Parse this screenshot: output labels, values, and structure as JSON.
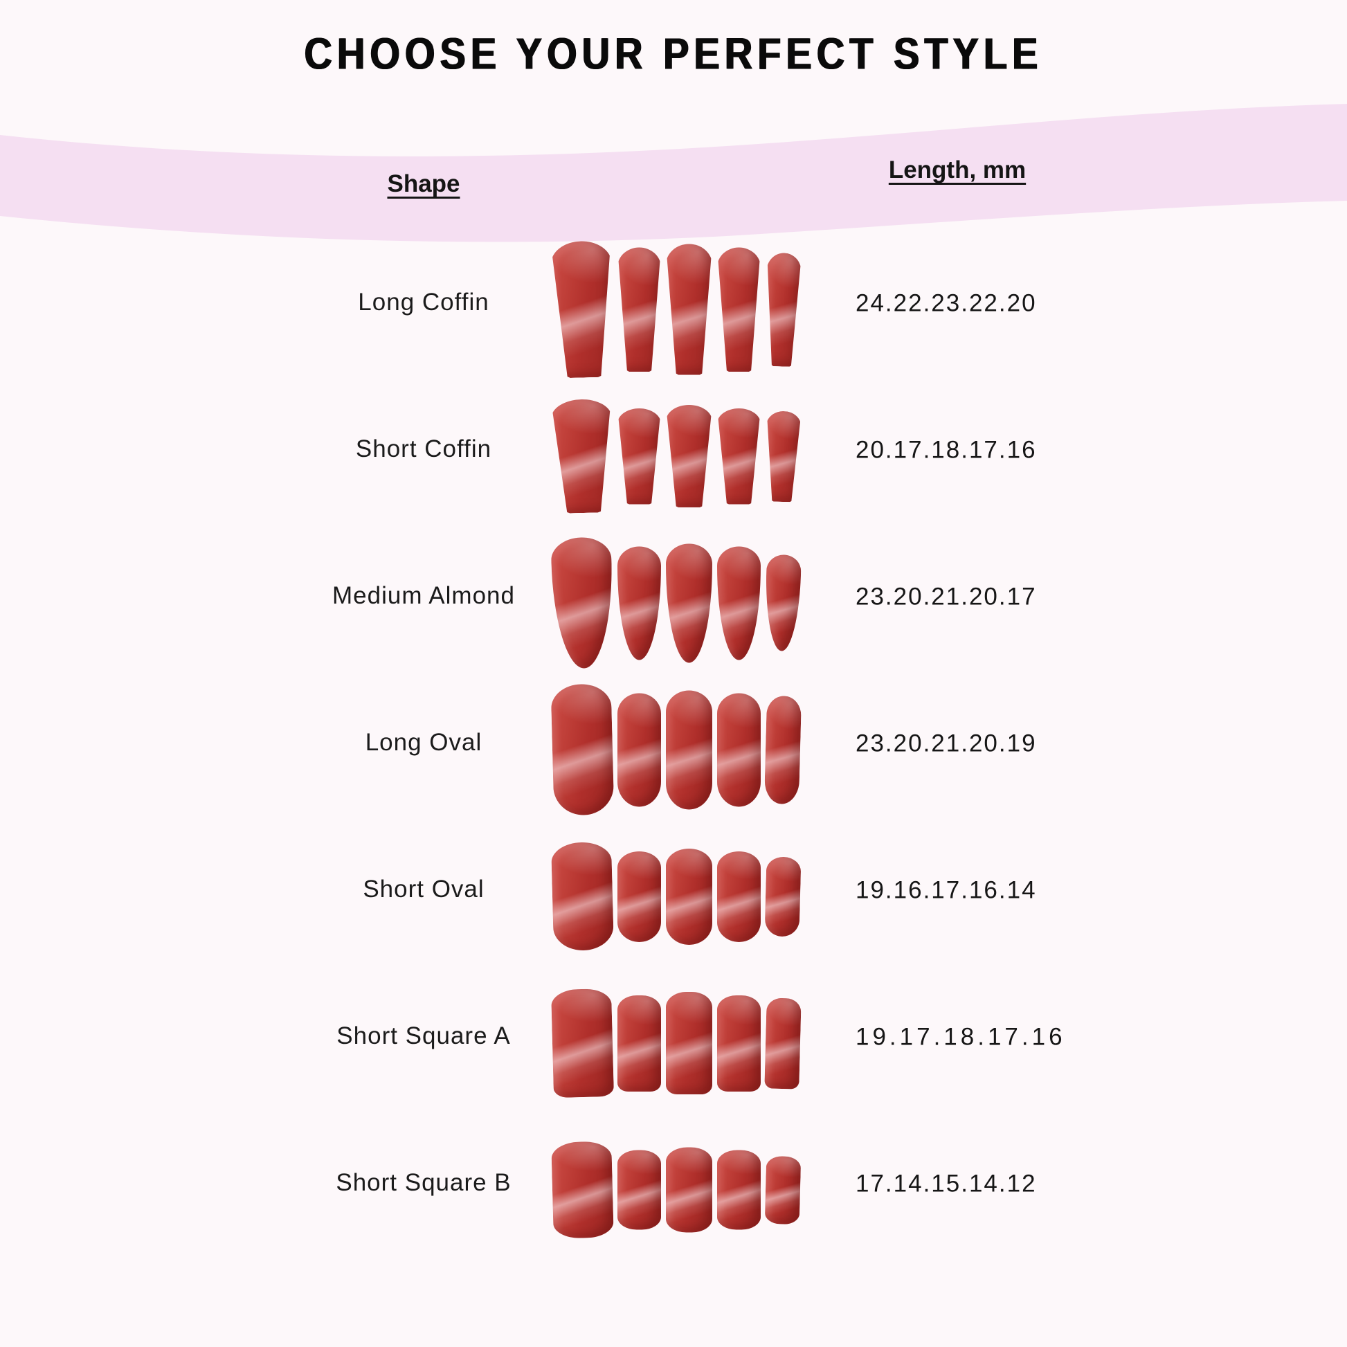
{
  "title": "CHOOSE YOUR PERFECT STYLE",
  "table": {
    "shape_header": "Shape",
    "length_header": "Length, mm",
    "rows": [
      {
        "shape": "Long Coffin",
        "lengths_text": "24.22.23.22.20",
        "lengths_mm": [
          24,
          22,
          23,
          22,
          20
        ],
        "style": "coffin"
      },
      {
        "shape": "Short Coffin",
        "lengths_text": "20.17.18.17.16",
        "lengths_mm": [
          20,
          17,
          18,
          17,
          16
        ],
        "style": "coffin"
      },
      {
        "shape": "Medium Almond",
        "lengths_text": "23.20.21.20.17",
        "lengths_mm": [
          23,
          20,
          21,
          20,
          17
        ],
        "style": "almond"
      },
      {
        "shape": "Long Oval",
        "lengths_text": "23.20.21.20.19",
        "lengths_mm": [
          23,
          20,
          21,
          20,
          19
        ],
        "style": "oval"
      },
      {
        "shape": "Short Oval",
        "lengths_text": "19.16.17.16.14",
        "lengths_mm": [
          19,
          16,
          17,
          16,
          14
        ],
        "style": "oval"
      },
      {
        "shape": "Short Square A",
        "lengths_text": "19.17.18.17.16",
        "lengths_mm": [
          19,
          17,
          18,
          17,
          16
        ],
        "style": "square"
      },
      {
        "shape": "Short Square B",
        "lengths_text": "17.14.15.14.12",
        "lengths_mm": [
          17,
          14,
          15,
          14,
          12
        ],
        "style": "squareB"
      }
    ]
  },
  "colors": {
    "background": "#fdf8fa",
    "band_pink": "#f5dff2",
    "nail_red": "#b5342f",
    "nail_red_dark": "#992521",
    "nail_red_light": "#cd4e47",
    "text": "#141414"
  }
}
